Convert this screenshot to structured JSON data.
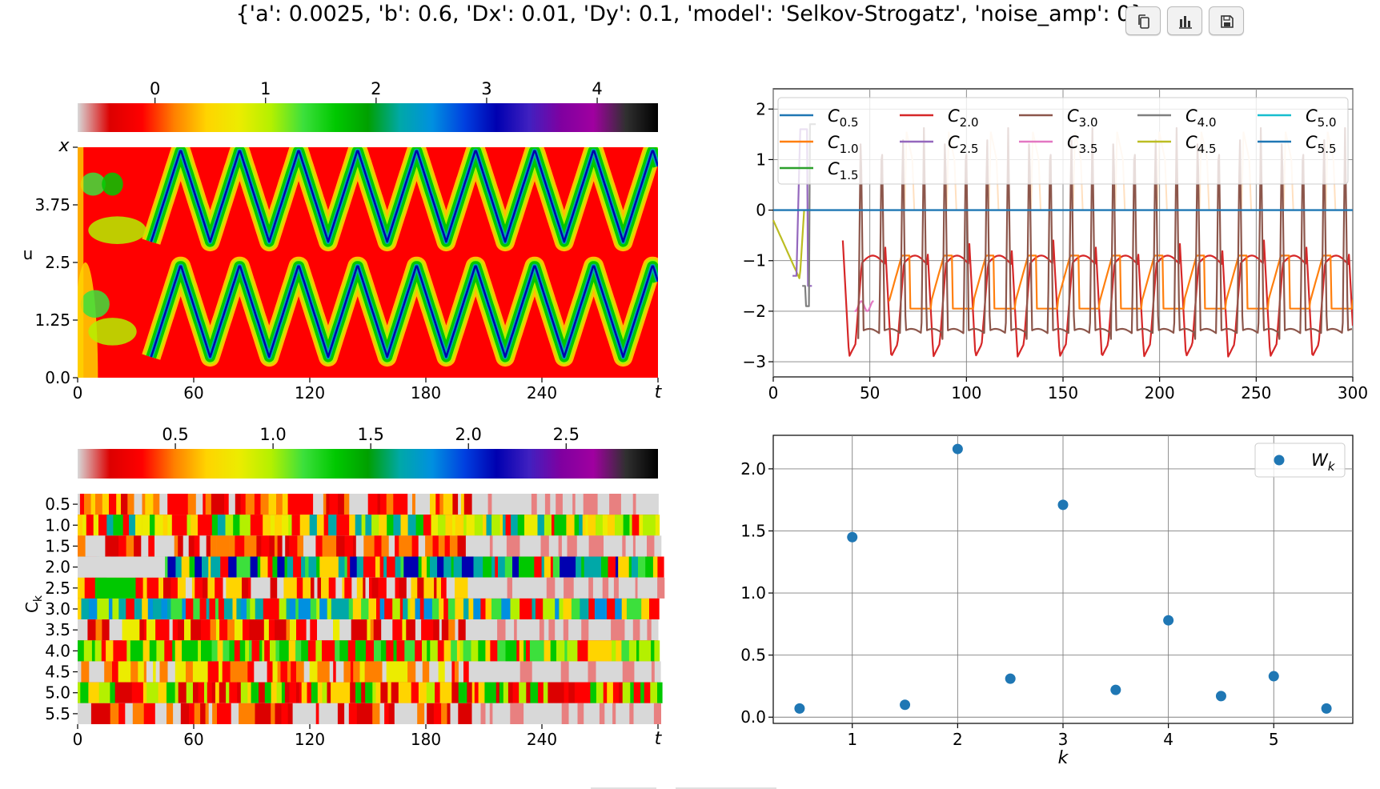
{
  "title": "{'a': 0.0025, 'b': 0.6, 'Dx': 0.01, 'Dy': 0.1, 'model': 'Selkov-Strogatz', 'noise_amp': 0}",
  "toolbar": [
    {
      "name": "copy-icon"
    },
    {
      "name": "bar-chart-icon"
    },
    {
      "name": "save-icon"
    }
  ],
  "colors": {
    "gist_ncar_like": [
      "#d8d8d8",
      "#dc0000",
      "#ff0000",
      "#ff8000",
      "#ffd400",
      "#ecec00",
      "#b4f000",
      "#3ce03c",
      "#00c800",
      "#00a000",
      "#00a8a8",
      "#0090e0",
      "#0040e0",
      "#0000b0",
      "#4020c0",
      "#8000a0",
      "#a000a0",
      "#303030",
      "#000000"
    ],
    "series": [
      "#1f77b4",
      "#ff7f0e",
      "#2ca02c",
      "#d62728",
      "#9467bd",
      "#8c564b",
      "#e377c2",
      "#7f7f7f",
      "#bcbd22",
      "#17becf",
      "#1f77b4"
    ]
  },
  "chart_data": [
    {
      "type": "heatmap",
      "id": "space-time",
      "colorbar_ticks": [
        "0",
        "1",
        "2",
        "3",
        "4"
      ],
      "colorbar_range": [
        -0.7,
        4.55
      ],
      "ylabel_top": "x",
      "ylabel": "u",
      "y_ticks": [
        "0.0",
        "1.25",
        "2.5",
        "3.75"
      ],
      "x_ticks": [
        "0",
        "60",
        "120",
        "180",
        "240"
      ],
      "xlabel": "t",
      "x_range": [
        0,
        300
      ],
      "y_range": [
        0,
        5
      ]
    },
    {
      "type": "line",
      "id": "correlations",
      "x_range": [
        0,
        300
      ],
      "ylim": [
        -3.3,
        2.4
      ],
      "x_ticks": [
        0,
        50,
        100,
        150,
        200,
        250,
        300
      ],
      "y_ticks": [
        -3,
        -2,
        -1,
        0,
        1,
        2
      ],
      "y_tick_labels": [
        "−3",
        "−2",
        "−1",
        "0",
        "1",
        "2"
      ],
      "grid": true,
      "legend_position": "top",
      "series": [
        {
          "name": "C",
          "sub": "0.5"
        },
        {
          "name": "C",
          "sub": "1.0"
        },
        {
          "name": "C",
          "sub": "1.5"
        },
        {
          "name": "C",
          "sub": "2.0"
        },
        {
          "name": "C",
          "sub": "2.5"
        },
        {
          "name": "C",
          "sub": "3.0"
        },
        {
          "name": "C",
          "sub": "3.5"
        },
        {
          "name": "C",
          "sub": "4.0"
        },
        {
          "name": "C",
          "sub": "4.5"
        },
        {
          "name": "C",
          "sub": "5.0"
        },
        {
          "name": "C",
          "sub": "5.5"
        }
      ],
      "approx_traces": {
        "C_2.0_period": 22,
        "C_2.0_min": -2.95,
        "C_2.0_max": -0.6,
        "C_3.0_period": 11,
        "C_3.0_min": -2.6,
        "C_3.0_max": 1.6,
        "C_1.0_max": 1.6,
        "C_1.0_min": -2.0,
        "C_5.5_value": 0
      }
    },
    {
      "type": "heatmap",
      "id": "correlation-bands",
      "colorbar_ticks": [
        "0.5",
        "1.0",
        "1.5",
        "2.0",
        "2.5"
      ],
      "colorbar_range": [
        0.0,
        2.97
      ],
      "ylabel": "C",
      "ylabel_sub": "k",
      "y_ticks": [
        "0.5",
        "1.0",
        "1.5",
        "2.0",
        "2.5",
        "3.0",
        "3.5",
        "4.0",
        "4.5",
        "5.0",
        "5.5"
      ],
      "x_ticks": [
        "0",
        "60",
        "120",
        "180",
        "240"
      ],
      "xlabel": "t",
      "x_range": [
        0,
        300
      ]
    },
    {
      "type": "scatter",
      "id": "spectrum",
      "x": [
        0.5,
        1.0,
        1.5,
        2.0,
        2.5,
        3.0,
        3.5,
        4.0,
        4.5,
        5.0,
        5.5
      ],
      "y": [
        0.07,
        1.45,
        0.1,
        2.16,
        0.31,
        1.71,
        0.22,
        0.78,
        0.17,
        0.33,
        0.07
      ],
      "xlim": [
        0.25,
        5.75
      ],
      "ylim": [
        -0.05,
        2.27
      ],
      "x_ticks": [
        1,
        2,
        3,
        4,
        5
      ],
      "y_ticks": [
        0.0,
        0.5,
        1.0,
        1.5,
        2.0
      ],
      "y_tick_labels": [
        "0.0",
        "0.5",
        "1.0",
        "1.5",
        "2.0"
      ],
      "xlabel": "k",
      "legend": {
        "name": "W",
        "sub": "k",
        "position": "top-right"
      },
      "grid": true,
      "color": "#1f77b4"
    }
  ]
}
